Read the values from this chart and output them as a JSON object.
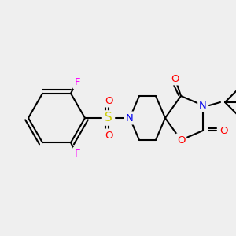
{
  "bg_color": "#efefef",
  "bond_color": "#000000",
  "bond_width": 1.5,
  "atom_colors": {
    "C": "#000000",
    "N": "#0000ee",
    "O": "#ff0000",
    "S": "#cccc00",
    "F": "#ff00ff"
  },
  "font_size": 9.5
}
